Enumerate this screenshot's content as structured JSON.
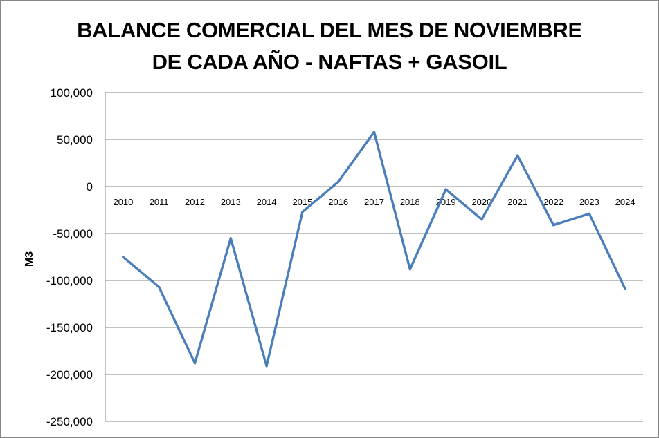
{
  "chart_data": {
    "type": "line",
    "title": [
      "BALANCE COMERCIAL DEL MES DE NOVIEMBRE",
      "DE CADA AÑO - NAFTAS + GASOIL"
    ],
    "xlabel": "",
    "ylabel": "M3",
    "ylim": [
      -250000,
      100000
    ],
    "yticks": [
      100000,
      50000,
      0,
      -50000,
      -100000,
      -150000,
      -200000,
      -250000
    ],
    "ytick_labels": [
      "100,000",
      "50,000",
      "0",
      "-50,000",
      "-100,000",
      "-150,000",
      "-200,000",
      "-250,000"
    ],
    "categories": [
      "2010",
      "2011",
      "2012",
      "2013",
      "2014",
      "2015",
      "2016",
      "2017",
      "2018",
      "2019",
      "2020",
      "2021",
      "2022",
      "2023",
      "2024"
    ],
    "series": [
      {
        "values": [
          -75000,
          -107000,
          -188000,
          -55000,
          -191000,
          -27000,
          5000,
          58000,
          -88000,
          -3000,
          -35000,
          33000,
          -41000,
          -29000,
          -109000
        ]
      }
    ],
    "grid": true,
    "legend": false,
    "colors": {
      "line": "#4a7ebb",
      "grid": "#868686"
    }
  }
}
